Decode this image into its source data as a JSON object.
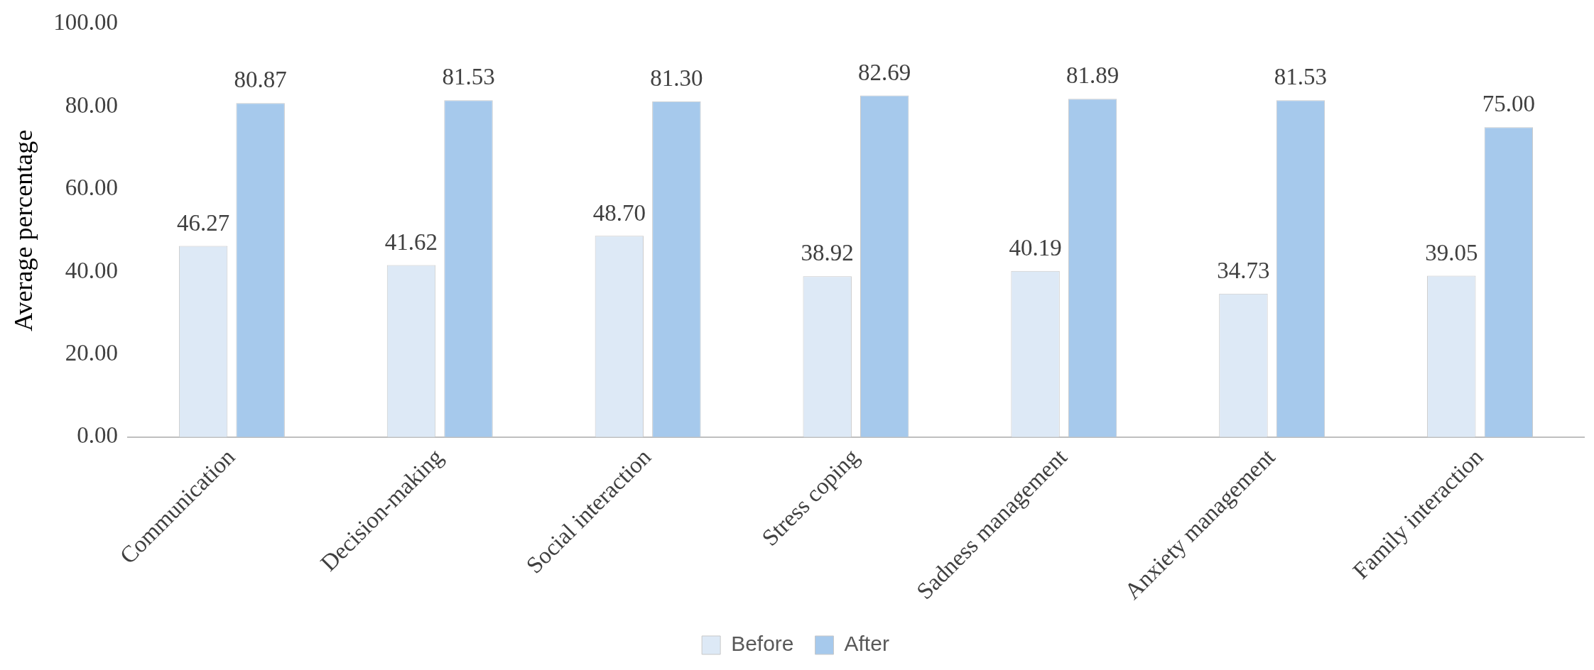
{
  "chart_data": {
    "type": "bar",
    "ylabel": "Average percentage",
    "categories": [
      "Communication",
      "Decision-making",
      "Social interaction",
      "Stress coping",
      "Sadness management",
      "Anxiety management",
      "Family interaction"
    ],
    "series": [
      {
        "name": "Before",
        "color": "#dde9f6",
        "values": [
          46.27,
          41.62,
          48.7,
          38.92,
          40.19,
          34.73,
          39.05
        ],
        "value_labels": [
          "46.27",
          "41.62",
          "48.70",
          "38.92",
          "40.19",
          "34.73",
          "39.05"
        ]
      },
      {
        "name": "After",
        "color": "#a6c9ec",
        "values": [
          80.87,
          81.53,
          81.3,
          82.69,
          81.89,
          81.53,
          75.0
        ],
        "value_labels": [
          "80.87",
          "81.53",
          "81.30",
          "82.69",
          "81.89",
          "81.53",
          "75.00"
        ]
      }
    ],
    "ylim": [
      0,
      100
    ],
    "yticks": [
      {
        "value": 0,
        "label": "0.00"
      },
      {
        "value": 20,
        "label": "20.00"
      },
      {
        "value": 40,
        "label": "40.00"
      },
      {
        "value": 60,
        "label": "60.00"
      },
      {
        "value": 80,
        "label": "80.00"
      },
      {
        "value": 100,
        "label": "100.00"
      }
    ],
    "grid": false,
    "legend": "bottom"
  }
}
